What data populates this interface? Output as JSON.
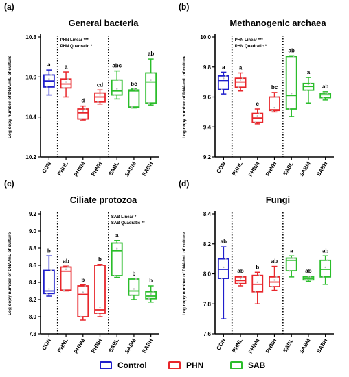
{
  "legend": {
    "control": "Control",
    "phn": "PHN",
    "sab": "SAB"
  },
  "colors": {
    "control": "#1f1fcc",
    "phn": "#e8262b",
    "sab": "#2bbd2b"
  },
  "chart_data": [
    {
      "type": "box",
      "panel_label": "(a)",
      "title": "General bacteria",
      "ylabel": "Log copy number of DNA/mL of culture",
      "ylim": [
        10.2,
        10.8
      ],
      "yticks": [
        "10.2",
        "10.4",
        "10.6",
        "10.8"
      ],
      "categories": [
        "CON",
        "PHNL",
        "PHNM",
        "PHNH",
        "SABL",
        "SABM",
        "SABH"
      ],
      "groups": [
        "control",
        "phn",
        "phn",
        "phn",
        "sab",
        "sab",
        "sab"
      ],
      "boxes": [
        {
          "min": 10.51,
          "q1": 10.55,
          "median": 10.58,
          "q3": 10.61,
          "max": 10.635
        },
        {
          "min": 10.5,
          "q1": 10.545,
          "median": 10.565,
          "q3": 10.59,
          "max": 10.625
        },
        {
          "min": 10.385,
          "q1": 10.39,
          "median": 10.42,
          "q3": 10.44,
          "max": 10.455
        },
        {
          "min": 10.465,
          "q1": 10.475,
          "median": 10.5,
          "q3": 10.52,
          "max": 10.535
        },
        {
          "min": 10.49,
          "q1": 10.51,
          "median": 10.53,
          "q3": 10.585,
          "max": 10.63
        },
        {
          "min": 10.445,
          "q1": 10.45,
          "median": 10.53,
          "q3": 10.535,
          "max": 10.54
        },
        {
          "min": 10.46,
          "q1": 10.47,
          "median": 10.575,
          "q3": 10.62,
          "max": 10.69
        }
      ],
      "letters": [
        "a",
        "a",
        "d",
        "cd",
        "abc",
        "bc",
        "ab"
      ],
      "annotation": [
        "PHN Linear       ***",
        "PHN Quadratic  *"
      ]
    },
    {
      "type": "box",
      "panel_label": "(b)",
      "title": "Methanogenic archaea",
      "ylabel": "Log copy number of DNA/mL of culture",
      "ylim": [
        9.2,
        10.0
      ],
      "yticks": [
        "9.2",
        "9.4",
        "9.6",
        "9.8",
        "10.0"
      ],
      "categories": [
        "CON",
        "PHNL",
        "PHNM",
        "PHNH",
        "SABL",
        "SABM",
        "SABH"
      ],
      "groups": [
        "control",
        "phn",
        "phn",
        "phn",
        "sab",
        "sab",
        "sab"
      ],
      "boxes": [
        {
          "min": 9.62,
          "q1": 9.65,
          "median": 9.71,
          "q3": 9.74,
          "max": 9.765
        },
        {
          "min": 9.64,
          "q1": 9.665,
          "median": 9.7,
          "q3": 9.725,
          "max": 9.76
        },
        {
          "min": 9.42,
          "q1": 9.43,
          "median": 9.46,
          "q3": 9.49,
          "max": 9.52
        },
        {
          "min": 9.5,
          "q1": 9.51,
          "median": 9.515,
          "q3": 9.6,
          "max": 9.63
        },
        {
          "min": 9.47,
          "q1": 9.52,
          "median": 9.61,
          "q3": 9.87,
          "max": 9.875
        },
        {
          "min": 9.56,
          "q1": 9.645,
          "median": 9.67,
          "q3": 9.69,
          "max": 9.73
        },
        {
          "min": 9.58,
          "q1": 9.595,
          "median": 9.615,
          "q3": 9.625,
          "max": 9.635
        }
      ],
      "letters": [
        "a",
        "a",
        "c",
        "bc",
        "ab",
        "a",
        "ab"
      ],
      "annotation": [
        "PHN Linear       ***",
        "PHN Quadratic  *"
      ]
    },
    {
      "type": "box",
      "panel_label": "(c)",
      "title": "Ciliate protozoa",
      "ylabel": "Log copy number of DNA/mL of culture",
      "ylim": [
        7.8,
        9.2
      ],
      "yticks": [
        "7.8",
        "8.0",
        "8.2",
        "8.4",
        "8.6",
        "8.8",
        "9.0",
        "9.2"
      ],
      "categories": [
        "CON",
        "PHNL",
        "PHNM",
        "PHNH",
        "SABL",
        "SABM",
        "SABH"
      ],
      "groups": [
        "control",
        "phn",
        "phn",
        "phn",
        "sab",
        "sab",
        "sab"
      ],
      "boxes": [
        {
          "min": 8.24,
          "q1": 8.27,
          "median": 8.3,
          "q3": 8.54,
          "max": 8.71
        },
        {
          "min": 8.3,
          "q1": 8.31,
          "median": 8.53,
          "q3": 8.58,
          "max": 8.59
        },
        {
          "min": 7.96,
          "q1": 8.0,
          "median": 8.26,
          "q3": 8.36,
          "max": 8.37
        },
        {
          "min": 8.0,
          "q1": 8.04,
          "median": 8.08,
          "q3": 8.6,
          "max": 8.61
        },
        {
          "min": 8.46,
          "q1": 8.48,
          "median": 8.77,
          "q3": 8.86,
          "max": 8.89
        },
        {
          "min": 8.2,
          "q1": 8.25,
          "median": 8.3,
          "q3": 8.44,
          "max": 8.44
        },
        {
          "min": 8.17,
          "q1": 8.21,
          "median": 8.24,
          "q3": 8.29,
          "max": 8.36
        }
      ],
      "letters": [
        "b",
        "ab",
        "b",
        "b",
        "a",
        "b",
        "b"
      ],
      "annotation": [
        "SAB Linear       *",
        "SAB Quadratic  **"
      ]
    },
    {
      "type": "box",
      "panel_label": "(d)",
      "title": "Fungi",
      "ylabel": "Log copy number of DNA/mL of culture",
      "ylim": [
        7.6,
        8.4
      ],
      "yticks": [
        "7.6",
        "7.8",
        "8.0",
        "8.2",
        "8.4"
      ],
      "categories": [
        "CON",
        "PHNL",
        "PHNM",
        "PHNH",
        "SABL",
        "SABM",
        "SABH"
      ],
      "groups": [
        "control",
        "phn",
        "phn",
        "phn",
        "sab",
        "sab",
        "sab"
      ],
      "boxes": [
        {
          "min": 7.7,
          "q1": 7.97,
          "median": 8.03,
          "q3": 8.1,
          "max": 8.18
        },
        {
          "min": 7.92,
          "q1": 7.935,
          "median": 7.955,
          "q3": 7.98,
          "max": 7.985
        },
        {
          "min": 7.8,
          "q1": 7.88,
          "median": 7.93,
          "q3": 7.99,
          "max": 8.01
        },
        {
          "min": 7.89,
          "q1": 7.915,
          "median": 7.945,
          "q3": 7.98,
          "max": 8.05
        },
        {
          "min": 7.98,
          "q1": 8.02,
          "median": 8.09,
          "q3": 8.105,
          "max": 8.12
        },
        {
          "min": 7.95,
          "q1": 7.96,
          "median": 7.97,
          "q3": 7.98,
          "max": 7.985
        },
        {
          "min": 7.93,
          "q1": 7.98,
          "median": 8.03,
          "q3": 8.09,
          "max": 8.12
        }
      ],
      "letters": [
        "ab",
        "ab",
        "b",
        "ab",
        "a",
        "ab",
        "ab"
      ],
      "annotation": []
    }
  ]
}
